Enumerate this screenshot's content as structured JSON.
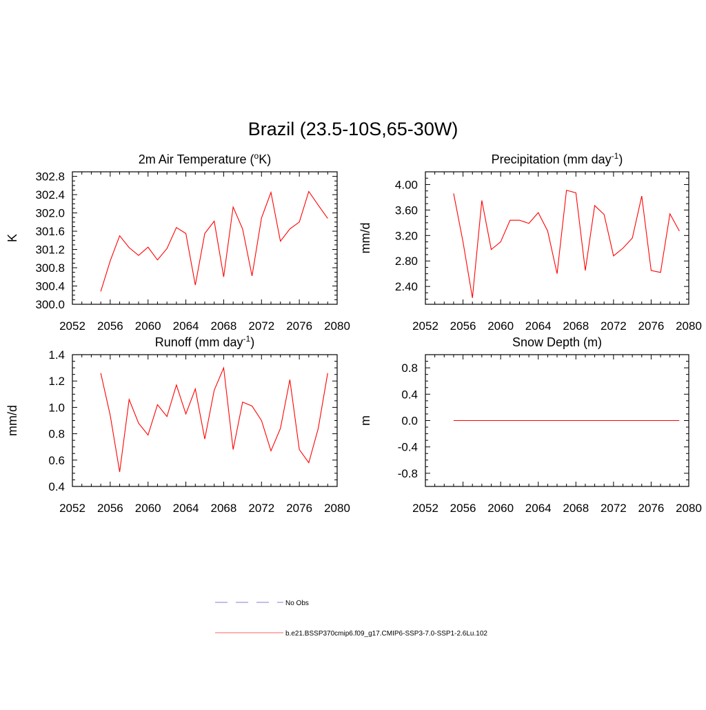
{
  "title": "Brazil (23.5-10S,65-30W)",
  "legend": {
    "entries": [
      {
        "label": "No Obs",
        "color": "#9999dd",
        "style": "dashed"
      },
      {
        "label": "b.e21.BSSP370cmip6.f09_g17.CMIP6-SSP3-7.0-SSP1-2.6Lu.102",
        "color": "#ff8080",
        "style": "solid"
      }
    ]
  },
  "chart_data": [
    {
      "type": "line",
      "title": "2m Air Temperature (°K)",
      "title_main": "2m Air Temperature (",
      "title_sup": "o",
      "title_tail": "K)",
      "ylabel": "K",
      "xlim": [
        2052,
        2080
      ],
      "ylim": [
        300.0,
        302.9
      ],
      "xticks": [
        "2052",
        "2056",
        "2060",
        "2064",
        "2068",
        "2072",
        "2076",
        "2080"
      ],
      "yticks": [
        "300.0",
        "300.4",
        "300.8",
        "301.2",
        "301.6",
        "302.0",
        "302.4",
        "302.8"
      ],
      "grid": false,
      "series": [
        {
          "color": "#ff0000",
          "x": [
            2055,
            2056,
            2057,
            2058,
            2059,
            2060,
            2061,
            2062,
            2063,
            2064,
            2065,
            2066,
            2067,
            2068,
            2069,
            2070,
            2071,
            2072,
            2073,
            2074,
            2075,
            2076,
            2077,
            2078,
            2079
          ],
          "y": [
            300.28,
            300.95,
            301.5,
            301.24,
            301.07,
            301.25,
            300.97,
            301.22,
            301.68,
            301.55,
            300.42,
            301.55,
            301.82,
            300.6,
            302.13,
            301.65,
            300.62,
            301.89,
            302.45,
            301.38,
            301.65,
            301.8,
            302.47,
            302.17,
            301.88
          ]
        }
      ]
    },
    {
      "type": "line",
      "title": "Precipitation (mm day-1)",
      "title_main": "Precipitation (mm day",
      "title_sup": "-1",
      "title_tail": ")",
      "ylabel": "mm/d",
      "xlim": [
        2052,
        2080
      ],
      "ylim": [
        2.12,
        4.2
      ],
      "xticks": [
        "2052",
        "2056",
        "2060",
        "2064",
        "2068",
        "2072",
        "2076",
        "2080"
      ],
      "yticks": [
        "2.40",
        "2.80",
        "3.20",
        "3.60",
        "4.00"
      ],
      "grid": false,
      "series": [
        {
          "color": "#ff0000",
          "x": [
            2055,
            2056,
            2057,
            2058,
            2059,
            2060,
            2061,
            2062,
            2063,
            2064,
            2065,
            2066,
            2067,
            2068,
            2069,
            2070,
            2071,
            2072,
            2073,
            2074,
            2075,
            2076,
            2077,
            2078,
            2079
          ],
          "y": [
            3.86,
            3.1,
            2.22,
            3.75,
            2.98,
            3.1,
            3.44,
            3.44,
            3.39,
            3.56,
            3.27,
            2.6,
            3.91,
            3.87,
            2.65,
            3.67,
            3.53,
            2.88,
            3.0,
            3.16,
            3.82,
            2.65,
            2.62,
            3.54,
            3.27
          ]
        }
      ]
    },
    {
      "type": "line",
      "title": "Runoff (mm day-1)",
      "title_main": "Runoff (mm day",
      "title_sup": "-1",
      "title_tail": ")",
      "ylabel": "mm/d",
      "xlim": [
        2052,
        2080
      ],
      "ylim": [
        0.4,
        1.4
      ],
      "xticks": [
        "2052",
        "2056",
        "2060",
        "2064",
        "2068",
        "2072",
        "2076",
        "2080"
      ],
      "yticks": [
        "0.4",
        "0.6",
        "0.8",
        "1.0",
        "1.2",
        "1.4"
      ],
      "grid": false,
      "series": [
        {
          "color": "#ff0000",
          "x": [
            2055,
            2056,
            2057,
            2058,
            2059,
            2060,
            2061,
            2062,
            2063,
            2064,
            2065,
            2066,
            2067,
            2068,
            2069,
            2070,
            2071,
            2072,
            2073,
            2074,
            2075,
            2076,
            2077,
            2078,
            2079
          ],
          "y": [
            1.26,
            0.94,
            0.51,
            1.06,
            0.88,
            0.79,
            1.02,
            0.93,
            1.17,
            0.95,
            1.14,
            0.76,
            1.13,
            1.3,
            0.68,
            1.04,
            1.01,
            0.9,
            0.67,
            0.84,
            1.21,
            0.68,
            0.58,
            0.84,
            1.26
          ]
        }
      ]
    },
    {
      "type": "line",
      "title": "Snow Depth (m)",
      "title_main": "Snow Depth (m)",
      "title_sup": "",
      "title_tail": "",
      "ylabel": "m",
      "xlim": [
        2052,
        2080
      ],
      "ylim": [
        -1.0,
        1.0
      ],
      "xticks": [
        "2052",
        "2056",
        "2060",
        "2064",
        "2068",
        "2072",
        "2076",
        "2080"
      ],
      "yticks": [
        "-0.8",
        "-0.4",
        "0.0",
        "0.4",
        "0.8"
      ],
      "grid": false,
      "series": [
        {
          "color": "#ff0000",
          "x": [
            2055,
            2056,
            2057,
            2058,
            2059,
            2060,
            2061,
            2062,
            2063,
            2064,
            2065,
            2066,
            2067,
            2068,
            2069,
            2070,
            2071,
            2072,
            2073,
            2074,
            2075,
            2076,
            2077,
            2078,
            2079
          ],
          "y": [
            0,
            0,
            0,
            0,
            0,
            0,
            0,
            0,
            0,
            0,
            0,
            0,
            0,
            0,
            0,
            0,
            0,
            0,
            0,
            0,
            0,
            0,
            0,
            0,
            0
          ]
        }
      ]
    }
  ]
}
